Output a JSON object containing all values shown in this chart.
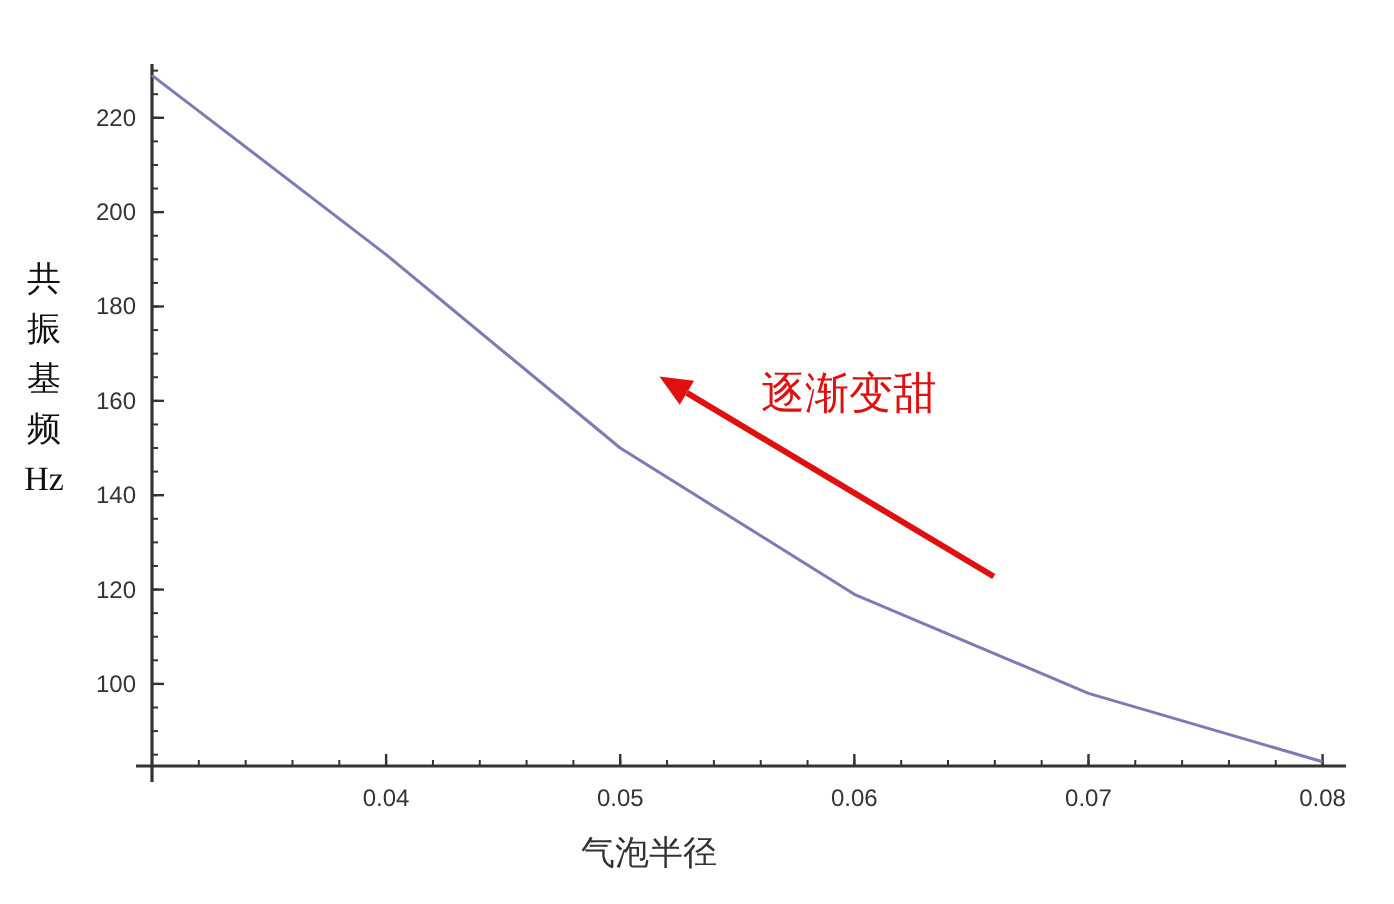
{
  "chart_data": {
    "type": "line",
    "xlabel": "气泡半径",
    "ylabel": "共振基频Hz",
    "x": [
      0.03,
      0.04,
      0.05,
      0.06,
      0.07,
      0.08
    ],
    "series": [
      {
        "color": "#7b7bb5",
        "values": [
          229,
          191,
          150,
          119,
          98,
          83.5
        ]
      }
    ],
    "xlim": [
      0.03,
      0.081
    ],
    "ylim": [
      82.6,
      231.4
    ],
    "xticks": [
      0.04,
      0.05,
      0.06,
      0.07,
      0.08
    ],
    "yticks": [
      100,
      120,
      140,
      160,
      180,
      200,
      220
    ],
    "marker": "none",
    "line_style": "solid",
    "annotations": [
      "逐渐变甜"
    ]
  }
}
